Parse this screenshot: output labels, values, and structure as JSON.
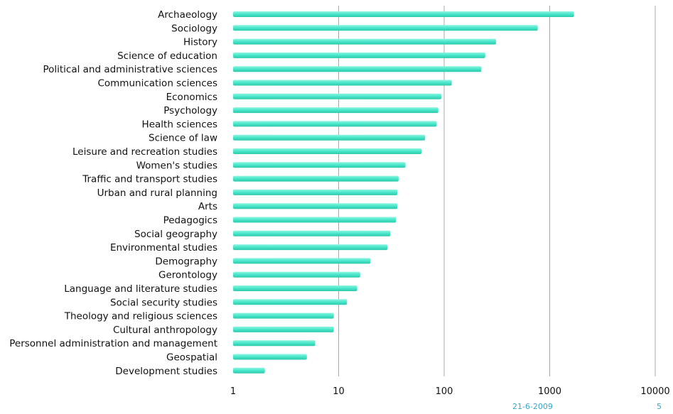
{
  "chart_data": {
    "type": "bar",
    "orientation": "horizontal",
    "x_scale": "log",
    "xlim": [
      1,
      10000
    ],
    "x_ticks": [
      "1",
      "10",
      "100",
      "1000",
      "10000"
    ],
    "grid": "vertical",
    "categories": [
      "Archaeology",
      "Sociology",
      "History",
      "Science of education",
      "Political and administrative sciences",
      "Communication sciences",
      "Economics",
      "Psychology",
      "Health sciences",
      "Science of law",
      "Leisure and recreation studies",
      "Women's studies",
      "Traffic and transport studies",
      "Urban and rural planning",
      "Arts",
      "Pedagogics",
      "Social geography",
      "Environmental studies",
      "Demography",
      "Gerontology",
      "Language and literature studies",
      "Social security studies",
      "Theology and religious sciences",
      "Cultural anthropology",
      "Personnel administration and management",
      "Geospatial",
      "Development studies"
    ],
    "values": [
      1700,
      770,
      310,
      245,
      225,
      118,
      94,
      88,
      85,
      66,
      61,
      43,
      37,
      36,
      36,
      35,
      31,
      29,
      20,
      16,
      15,
      12,
      9,
      9,
      6,
      5,
      2
    ],
    "bar_color": "#4de8cc"
  },
  "footer": {
    "date": "21-6-2009",
    "page": "5",
    "color": "#3aa6c8"
  }
}
